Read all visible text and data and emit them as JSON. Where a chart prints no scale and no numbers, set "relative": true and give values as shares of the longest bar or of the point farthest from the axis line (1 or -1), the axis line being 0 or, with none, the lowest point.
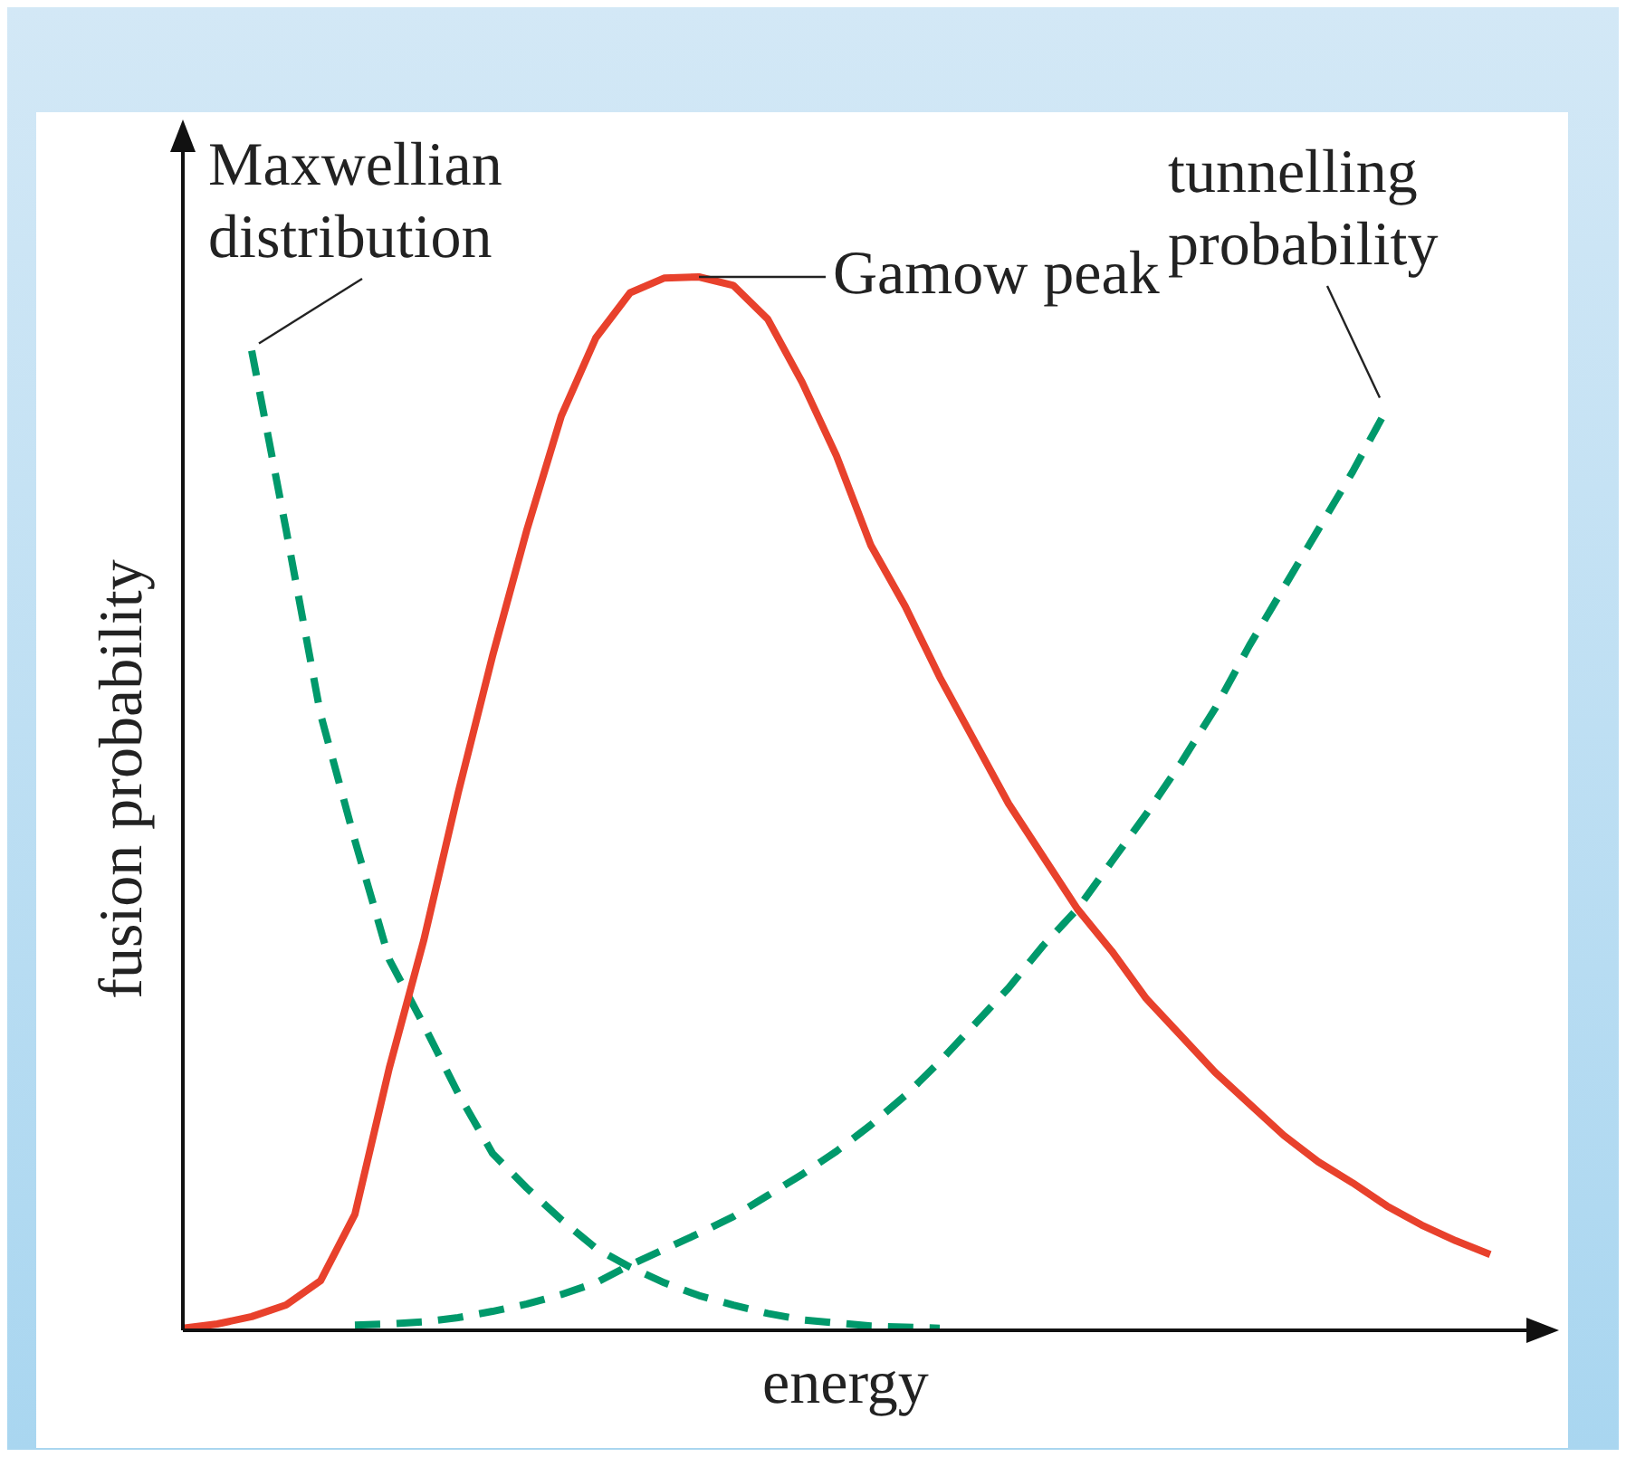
{
  "chart_data": {
    "type": "line",
    "relative": true,
    "xlabel": "energy",
    "ylabel": "fusion probability",
    "categories": [
      null,
      null,
      null,
      null,
      null,
      null,
      null,
      null,
      null,
      null,
      null,
      null,
      null,
      null,
      null,
      null,
      null,
      null,
      null,
      null,
      null,
      null,
      null,
      null,
      null,
      null,
      null,
      null,
      null,
      null,
      null,
      null,
      null,
      null,
      null,
      null,
      null,
      null,
      null,
      null,
      null
    ],
    "annotations": [
      "Maxwellian distribution",
      "Gamow peak",
      "tunnelling probability"
    ],
    "series": [
      {
        "color": "#00996b",
        "line_style": "dashed",
        "values": [
          null,
          null,
          0.93,
          0.76,
          0.585,
          0.465,
          0.352,
          0.29,
          0.225,
          0.168,
          0.135,
          0.105,
          0.078,
          0.06,
          0.045,
          0.033,
          0.024,
          0.016,
          0.01,
          0.007,
          0.004,
          0.003,
          0.002,
          null,
          null,
          null,
          null,
          null,
          null,
          null,
          null,
          null,
          null,
          null,
          null,
          null,
          null,
          null,
          null,
          null,
          null
        ]
      },
      {
        "color": "#e8412c",
        "line_style": "solid",
        "values": [
          0.002,
          0.006,
          0.013,
          0.024,
          0.047,
          0.11,
          0.249,
          0.37,
          0.51,
          0.64,
          0.76,
          0.868,
          0.942,
          0.985,
          0.999,
          1,
          0.992,
          0.96,
          0.9,
          0.83,
          0.745,
          0.687,
          0.62,
          0.56,
          0.5,
          0.45,
          0.4,
          0.36,
          0.315,
          0.28,
          0.245,
          0.215,
          0.185,
          0.16,
          0.14,
          0.118,
          0.1,
          0.085,
          0.072,
          null,
          null
        ]
      },
      {
        "color": "#00996b",
        "line_style": "dashed",
        "values": [
          null,
          null,
          null,
          null,
          null,
          0.005,
          0.006,
          0.008,
          0.012,
          0.018,
          0.025,
          0.034,
          0.045,
          0.062,
          0.077,
          0.092,
          0.108,
          0.128,
          0.148,
          0.17,
          0.195,
          0.223,
          0.255,
          0.29,
          0.325,
          0.365,
          0.4,
          0.445,
          0.49,
          0.538,
          0.59,
          0.65,
          0.705,
          0.76,
          0.815,
          0.875,
          null,
          null,
          null,
          null,
          null
        ]
      }
    ]
  }
}
